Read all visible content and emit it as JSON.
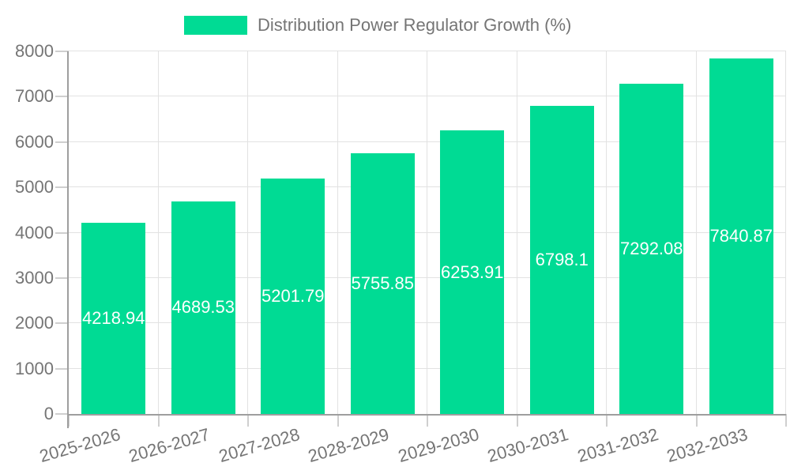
{
  "chart_data": {
    "type": "bar",
    "title": "Distribution Power Regulator Growth (%)",
    "categories": [
      "2025-2026",
      "2026-2027",
      "2027-2028",
      "2028-2029",
      "2029-2030",
      "2030-2031",
      "2031-2032",
      "2032-2033"
    ],
    "series": [
      {
        "name": "Distribution Power Regulator Growth (%)",
        "values": [
          4218.94,
          4689.53,
          5201.79,
          5755.85,
          6253.91,
          6798.1,
          7292.08,
          7840.87
        ]
      }
    ],
    "value_labels": [
      "4218.94",
      "4689.53",
      "5201.79",
      "5755.85",
      "6253.91",
      "6798.1",
      "7292.08",
      "7840.87"
    ],
    "xlabel": "",
    "ylabel": "",
    "ylim": [
      0,
      8000
    ],
    "yticks": [
      0,
      1000,
      2000,
      3000,
      4000,
      5000,
      6000,
      7000,
      8000
    ],
    "grid": true,
    "legend_position": "top",
    "colors": {
      "bar": "#00DB94",
      "axis_text": "#757575",
      "value_text": "#ffffff",
      "grid_line": "#e2e2e2",
      "axis_line": "#9e9e9e",
      "tick_line": "#cfcfcf"
    }
  }
}
